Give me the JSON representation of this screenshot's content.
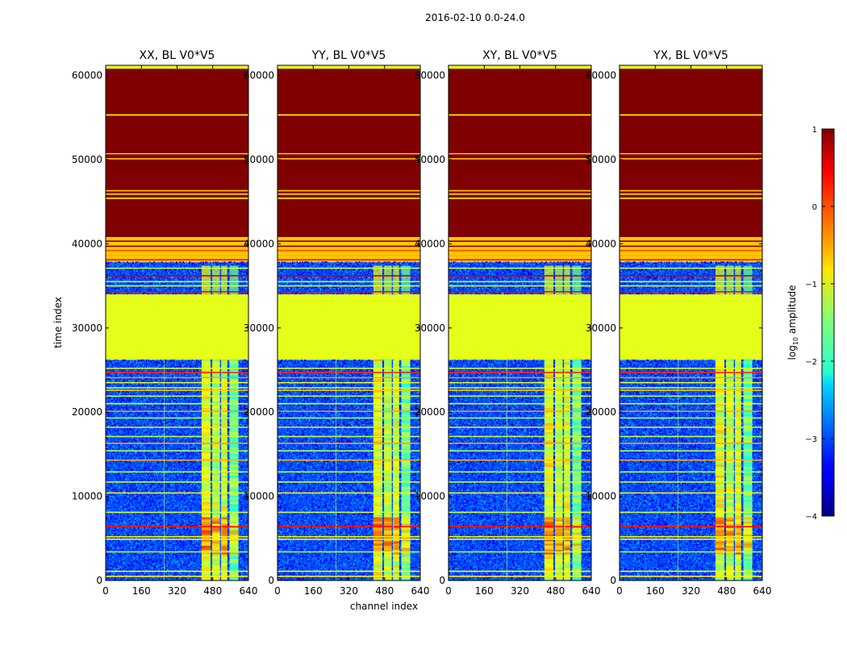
{
  "figure": {
    "suptitle": "2016-02-10 0.0-24.0",
    "xlabel": "channel index",
    "ylabel": "time index",
    "colorbar_label": "log10 amplitude"
  },
  "colors": {
    "dark_red": "#7f0000",
    "green_yellow": "#9cff5a",
    "yellow": "#f5f20a",
    "orange": "#ffa000",
    "red": "#ff2a00",
    "cyan": "#27e8ff",
    "blue": "#0a2bff",
    "dark_blue": "#00008f"
  },
  "chart_data": {
    "type": "heatmap",
    "xlim": [
      0,
      640
    ],
    "ylim": [
      0,
      61200
    ],
    "xticks": [
      0,
      160,
      320,
      480,
      640
    ],
    "yticks": [
      0,
      10000,
      20000,
      30000,
      40000,
      50000,
      60000
    ],
    "colorbar": {
      "colormap": "jet",
      "range": [
        -4,
        1
      ],
      "ticks": [
        1,
        0,
        -1,
        -2,
        -3,
        -4
      ],
      "tick_labels": [
        "1",
        "0",
        "−1",
        "−2",
        "−3",
        "−4"
      ]
    },
    "panels": [
      {
        "title": "XX, BL V0*V5"
      },
      {
        "title": "YY, BL V0*V5"
      },
      {
        "title": "XY, BL V0*V5"
      },
      {
        "title": "YX, BL V0*V5"
      }
    ],
    "regions": [
      {
        "t0": 0,
        "t1": 26200,
        "level": -3.0,
        "description": "noise floor"
      },
      {
        "t0": 26200,
        "t1": 34000,
        "level": -1.0,
        "description": "flat block"
      },
      {
        "t0": 34000,
        "t1": 37800,
        "level": -3.0,
        "description": "mixed rows"
      },
      {
        "t0": 37800,
        "t1": 40800,
        "level": -0.6,
        "description": "striped rows"
      },
      {
        "t0": 40800,
        "t1": 60800,
        "level": 1.0,
        "description": "saturated block"
      },
      {
        "t0": 60800,
        "t1": 61200,
        "level": -1.0,
        "description": "top edge"
      }
    ],
    "bright_channel_bands": [
      {
        "c0": 430,
        "c1": 470,
        "level": -1.0
      },
      {
        "c0": 478,
        "c1": 512,
        "level": -1.2
      },
      {
        "c0": 518,
        "c1": 545,
        "level": -1.1
      },
      {
        "c0": 555,
        "c1": 595,
        "level": -1.6
      }
    ],
    "horizontal_lines": [
      {
        "t": 500,
        "level": -0.8
      },
      {
        "t": 1100,
        "level": -0.9
      },
      {
        "t": 3400,
        "level": -1.2
      },
      {
        "t": 4900,
        "level": -0.8
      },
      {
        "t": 5200,
        "level": -0.8
      },
      {
        "t": 6400,
        "level": 0.3
      },
      {
        "t": 8100,
        "level": -1.1
      },
      {
        "t": 10400,
        "level": -0.8
      },
      {
        "t": 11700,
        "level": -1.2
      },
      {
        "t": 12900,
        "level": -1.2
      },
      {
        "t": 14300,
        "level": -0.5
      },
      {
        "t": 15400,
        "level": -1.3
      },
      {
        "t": 16300,
        "level": -0.4
      },
      {
        "t": 17100,
        "level": -1.2
      },
      {
        "t": 18200,
        "level": -0.7
      },
      {
        "t": 19300,
        "level": -1.3
      },
      {
        "t": 20100,
        "level": -0.4
      },
      {
        "t": 21000,
        "level": -1.0
      },
      {
        "t": 21900,
        "level": -1.2
      },
      {
        "t": 22600,
        "level": -0.6
      },
      {
        "t": 22900,
        "level": -1.0
      },
      {
        "t": 23500,
        "level": -0.9
      },
      {
        "t": 24100,
        "level": -0.4
      },
      {
        "t": 24700,
        "level": 0.2
      },
      {
        "t": 25200,
        "level": -1.0
      },
      {
        "t": 34300,
        "level": 0.4
      },
      {
        "t": 35000,
        "level": -1.0
      },
      {
        "t": 35500,
        "level": -1.2
      },
      {
        "t": 36200,
        "level": 0.6
      },
      {
        "t": 37100,
        "level": -1.1
      },
      {
        "t": 38100,
        "level": 0.3
      },
      {
        "t": 38600,
        "level": -0.5
      },
      {
        "t": 39200,
        "level": 0.0
      },
      {
        "t": 39700,
        "level": 1.0
      },
      {
        "t": 40300,
        "level": 1.0
      },
      {
        "t": 45400,
        "level": -0.8
      },
      {
        "t": 45900,
        "level": -0.8
      },
      {
        "t": 46300,
        "level": -0.6
      },
      {
        "t": 50100,
        "level": -0.6
      },
      {
        "t": 50700,
        "level": -0.6
      },
      {
        "t": 55300,
        "level": -0.9
      }
    ]
  }
}
